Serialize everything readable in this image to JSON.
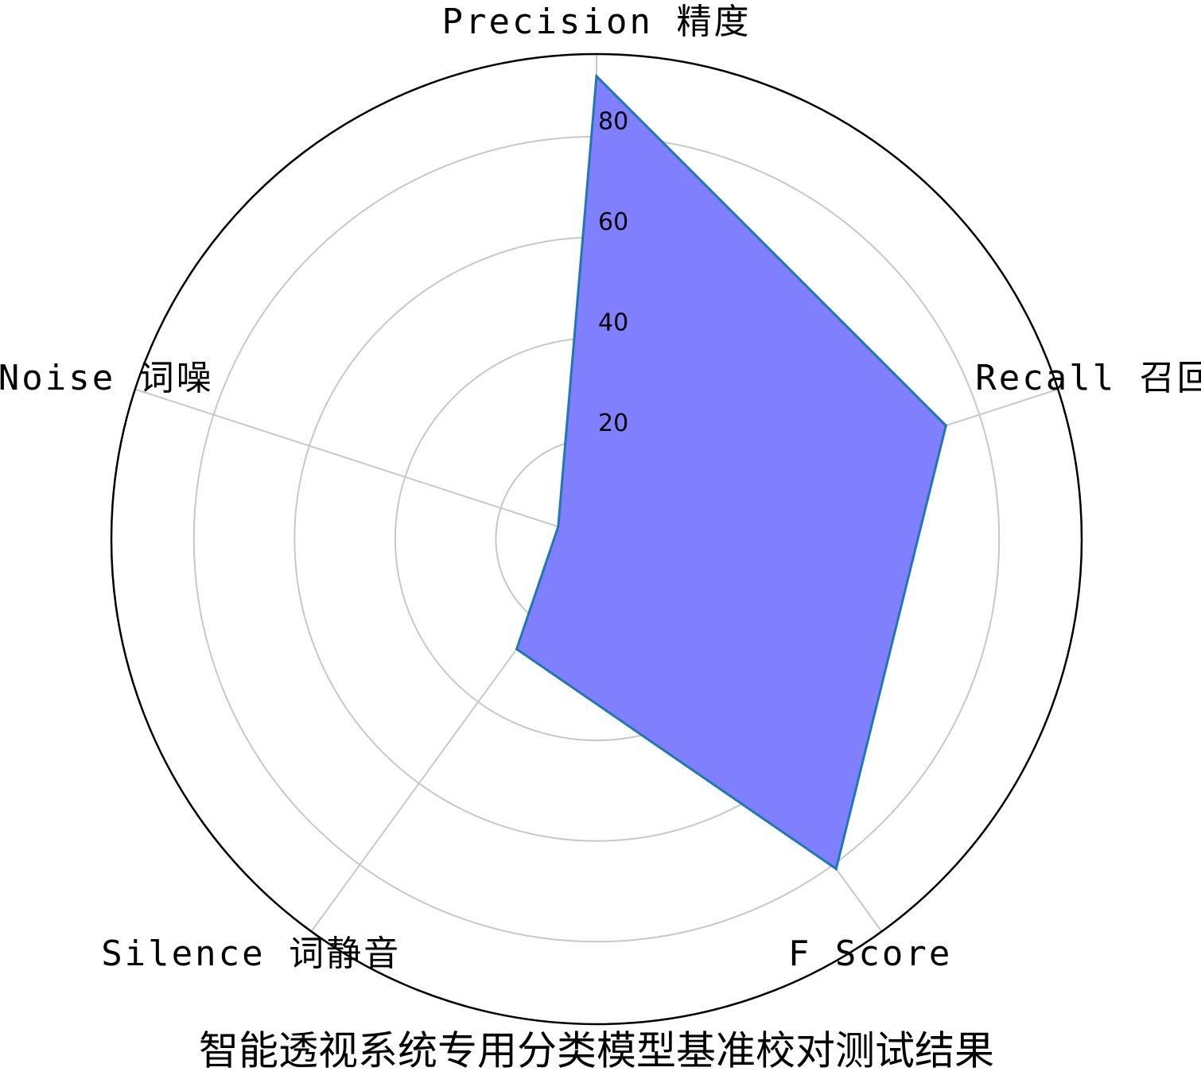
{
  "chart_data": {
    "type": "radar",
    "title": "智能透视系统专用分类模型基准校对测试结果",
    "categories": [
      "Precision 精度",
      "Recall 召回",
      "F Score",
      "Silence 词静音",
      "Noise 词噪"
    ],
    "values": [
      92,
      73,
      81,
      27,
      8
    ],
    "fill_color": "#8080ff",
    "line_color": "#1f77b4",
    "ylim": [
      0,
      96.4
    ],
    "yticks": [
      20,
      40,
      60,
      80
    ],
    "grid": true
  }
}
